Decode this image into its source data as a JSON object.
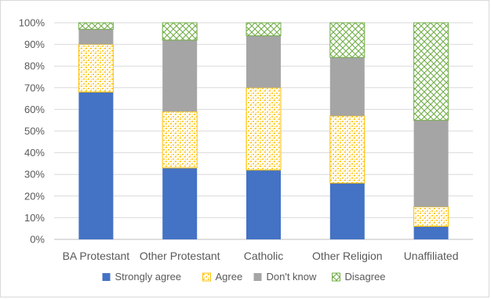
{
  "chart_data": {
    "type": "bar",
    "stacked": true,
    "percent_stacked": true,
    "categories": [
      "BA Protestant",
      "Other Protestant",
      "Catholic",
      "Other Religion",
      "Unaffiliated"
    ],
    "series": [
      {
        "name": "Strongly agree",
        "values": [
          68,
          33,
          32,
          26,
          6
        ],
        "color": "#4472C4",
        "pattern": "solid"
      },
      {
        "name": "Agree",
        "values": [
          22,
          26,
          38,
          31,
          9
        ],
        "color": "#FFC000",
        "pattern": "confetti"
      },
      {
        "name": "Don't know",
        "values": [
          7,
          33,
          24,
          27,
          40
        ],
        "color": "#A5A5A5",
        "pattern": "solid"
      },
      {
        "name": "Disagree",
        "values": [
          3,
          8,
          6,
          16,
          45
        ],
        "color": "#70AD47",
        "pattern": "trellis"
      }
    ],
    "y_ticks": [
      "0%",
      "10%",
      "20%",
      "30%",
      "40%",
      "50%",
      "60%",
      "70%",
      "80%",
      "90%",
      "100%"
    ],
    "ylim": [
      0,
      100
    ],
    "grid": true,
    "legend_position": "bottom",
    "title": "",
    "xlabel": "",
    "ylabel": ""
  }
}
